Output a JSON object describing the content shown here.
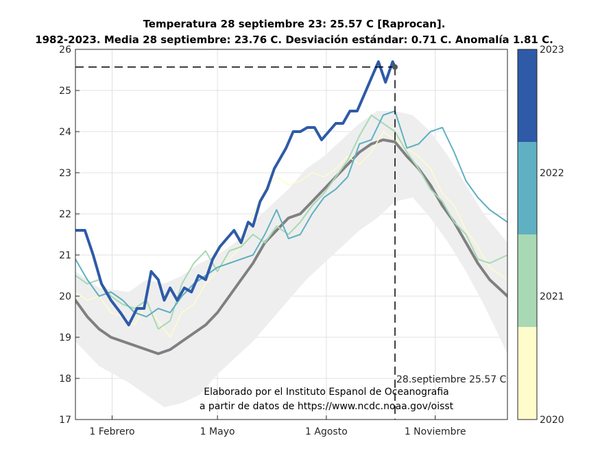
{
  "chart_data": {
    "type": "line",
    "title": "Temperatura 28 septiembre 23: 25.57 C [Raprocan].",
    "subtitle": "1982-2023. Media 28 septiembre: 23.76 C. Desviación estándar: 0.71 C. Anomalía 1.81 C.",
    "xlabel": "",
    "ylabel": "",
    "x_range_days": [
      0,
      365
    ],
    "ylim": [
      17,
      26
    ],
    "yticks": [
      17,
      18,
      19,
      20,
      21,
      22,
      23,
      24,
      25,
      26
    ],
    "xticks": [
      {
        "day": 31,
        "label": "1 Febrero"
      },
      {
        "day": 120,
        "label": "1 Mayo"
      },
      {
        "day": 212,
        "label": "1 Agosto"
      },
      {
        "day": 304,
        "label": "1 Noviembre"
      }
    ],
    "grid": true,
    "marker": {
      "day": 270,
      "value": 25.57,
      "label": "28.septiembre 25.57 C"
    },
    "annotation": [
      "Elaborado por el Instituto Espanol de Oceanografia",
      "a partir de datos de https://www.ncdc.noaa.gov/oisst"
    ],
    "colorbar": {
      "labels": [
        "2023",
        "2022",
        "2021",
        "2020"
      ],
      "colors": [
        "#2e5aa8",
        "#5fb0c2",
        "#a8d9b4",
        "#fffccc"
      ]
    },
    "band": {
      "name": "range",
      "color": "#eeeeee",
      "x": [
        0,
        20,
        45,
        60,
        75,
        90,
        105,
        120,
        135,
        150,
        165,
        180,
        195,
        210,
        225,
        240,
        255,
        270,
        285,
        300,
        315,
        330,
        345,
        365
      ],
      "upper": [
        20.6,
        20.2,
        20.1,
        20.4,
        20.3,
        20.5,
        20.8,
        21.0,
        21.3,
        21.8,
        22.2,
        22.6,
        23.1,
        23.4,
        23.8,
        24.2,
        24.5,
        24.5,
        24.4,
        24.0,
        23.4,
        22.7,
        22.0,
        21.3
      ],
      "lower": [
        18.9,
        18.3,
        17.9,
        17.6,
        17.3,
        17.4,
        17.6,
        18.1,
        18.5,
        18.9,
        19.4,
        19.9,
        20.4,
        20.8,
        21.2,
        21.6,
        21.9,
        22.3,
        22.4,
        21.9,
        21.3,
        20.6,
        19.8,
        18.6
      ]
    },
    "series": [
      {
        "color": "#808080",
        "width": 4,
        "x": [
          0,
          10,
          20,
          30,
          40,
          50,
          60,
          70,
          80,
          90,
          100,
          110,
          120,
          130,
          140,
          150,
          160,
          170,
          180,
          190,
          200,
          210,
          220,
          230,
          240,
          250,
          260,
          270,
          280,
          290,
          300,
          310,
          320,
          330,
          340,
          350,
          365
        ],
        "y": [
          19.9,
          19.5,
          19.2,
          19.0,
          18.9,
          18.8,
          18.7,
          18.6,
          18.7,
          18.9,
          19.1,
          19.3,
          19.6,
          20.0,
          20.4,
          20.8,
          21.3,
          21.6,
          21.9,
          22.0,
          22.3,
          22.6,
          22.9,
          23.2,
          23.5,
          23.7,
          23.8,
          23.75,
          23.4,
          23.1,
          22.7,
          22.2,
          21.8,
          21.3,
          20.8,
          20.4,
          20.0
        ]
      },
      {
        "color": "#fffccc",
        "width": 1.5,
        "x": [
          0,
          10,
          20,
          30,
          40,
          50,
          60,
          70,
          80,
          90,
          100,
          110,
          120,
          130,
          140,
          150,
          160,
          170,
          180,
          190,
          200,
          210,
          220,
          230,
          240,
          250,
          260,
          270,
          280,
          290,
          300,
          310,
          320,
          330,
          340,
          350,
          365
        ],
        "y": [
          20.1,
          19.9,
          20.0,
          19.6,
          19.5,
          19.3,
          19.8,
          19.4,
          19.0,
          19.6,
          19.8,
          20.3,
          20.6,
          20.9,
          21.2,
          22.0,
          22.6,
          22.9,
          22.7,
          22.8,
          23.0,
          22.9,
          23.1,
          23.4,
          23.2,
          23.5,
          24.0,
          23.8,
          23.6,
          23.4,
          23.1,
          22.5,
          22.2,
          21.6,
          21.2,
          20.7,
          20.4
        ]
      },
      {
        "color": "#a8d9b4",
        "width": 2,
        "x": [
          0,
          10,
          20,
          30,
          40,
          50,
          60,
          70,
          80,
          90,
          100,
          110,
          120,
          130,
          140,
          150,
          160,
          170,
          180,
          190,
          200,
          210,
          220,
          230,
          240,
          250,
          260,
          270,
          280,
          290,
          300,
          310,
          320,
          330,
          340,
          350,
          365
        ],
        "y": [
          20.5,
          20.3,
          20.4,
          20.0,
          19.8,
          19.7,
          19.9,
          19.2,
          19.4,
          20.3,
          20.8,
          21.1,
          20.6,
          21.1,
          21.2,
          21.5,
          21.3,
          21.7,
          21.5,
          21.8,
          22.2,
          22.5,
          22.9,
          23.3,
          23.9,
          24.4,
          24.2,
          24.0,
          23.5,
          23.1,
          22.6,
          22.3,
          21.8,
          21.5,
          20.9,
          20.8,
          21.0
        ]
      },
      {
        "color": "#5fb0c2",
        "width": 2,
        "x": [
          0,
          10,
          20,
          30,
          40,
          50,
          60,
          70,
          80,
          90,
          100,
          110,
          120,
          130,
          140,
          150,
          160,
          170,
          180,
          190,
          200,
          210,
          220,
          230,
          240,
          250,
          260,
          270,
          280,
          290,
          300,
          310,
          320,
          330,
          340,
          350,
          365
        ],
        "y": [
          20.9,
          20.4,
          20.0,
          20.1,
          19.9,
          19.6,
          19.5,
          19.7,
          19.6,
          20.0,
          20.3,
          20.5,
          20.7,
          20.8,
          20.9,
          21.0,
          21.5,
          22.1,
          21.4,
          21.5,
          22.0,
          22.4,
          22.6,
          22.9,
          23.7,
          23.8,
          24.4,
          24.5,
          23.6,
          23.7,
          24.0,
          24.1,
          23.5,
          22.8,
          22.4,
          22.1,
          21.8
        ]
      },
      {
        "color": "#2e5aa8",
        "width": 4,
        "x": [
          0,
          8,
          15,
          22,
          30,
          38,
          45,
          52,
          58,
          64,
          70,
          75,
          80,
          86,
          92,
          98,
          104,
          110,
          116,
          122,
          128,
          134,
          140,
          146,
          150,
          156,
          162,
          168,
          172,
          178,
          184,
          190,
          196,
          202,
          208,
          214,
          220,
          226,
          232,
          238,
          244,
          250,
          256,
          262,
          268,
          270
        ],
        "y": [
          21.6,
          21.6,
          21.0,
          20.3,
          19.9,
          19.6,
          19.3,
          19.7,
          19.7,
          20.6,
          20.4,
          19.9,
          20.2,
          19.9,
          20.2,
          20.1,
          20.5,
          20.4,
          20.9,
          21.2,
          21.4,
          21.6,
          21.3,
          21.8,
          21.7,
          22.3,
          22.6,
          23.1,
          23.3,
          23.6,
          24.0,
          24.0,
          24.1,
          24.1,
          23.8,
          24.0,
          24.2,
          24.2,
          24.5,
          24.5,
          24.9,
          25.3,
          25.7,
          25.2,
          25.7,
          25.57
        ]
      }
    ]
  }
}
